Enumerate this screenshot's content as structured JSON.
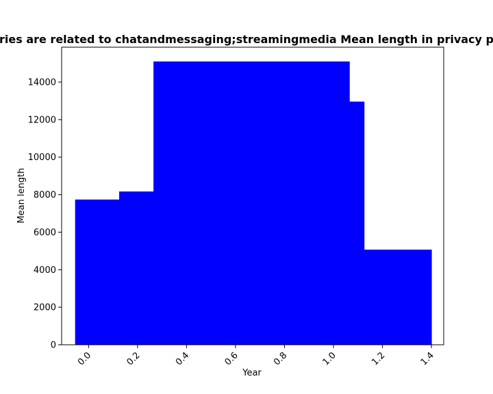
{
  "chart_data": {
    "type": "bar",
    "title": "ries are related to chatandmessaging;streamingmedia Mean length in privacy p",
    "xlabel": "Year",
    "ylabel": "Mean length",
    "bar_color": "#0000ff",
    "x_tick_labels": [
      "0.0",
      "0.2",
      "0.4",
      "0.6",
      "0.8",
      "1.0",
      "1.2",
      "1.4"
    ],
    "y_tick_labels": [
      "0",
      "2000",
      "4000",
      "6000",
      "8000",
      "10000",
      "12000",
      "14000"
    ],
    "xlim": [
      -0.11,
      1.45
    ],
    "ylim": [
      0,
      15860
    ],
    "bars": [
      {
        "x_start": -0.055,
        "x_end": 0.125,
        "value": 7740
      },
      {
        "x_start": 0.125,
        "x_end": 0.265,
        "value": 8170
      },
      {
        "x_start": 0.265,
        "x_end": 1.065,
        "value": 15100
      },
      {
        "x_start": 1.065,
        "x_end": 1.125,
        "value": 12960
      },
      {
        "x_start": 1.125,
        "x_end": 1.4,
        "value": 5070
      }
    ]
  }
}
